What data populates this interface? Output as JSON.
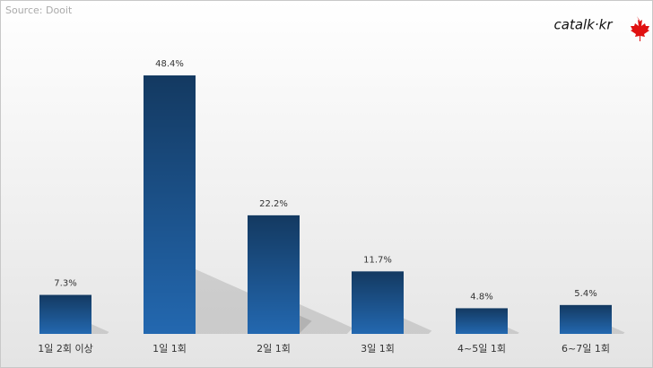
{
  "chart_data": {
    "type": "bar",
    "source": "Source: Dooit",
    "logo": "catalk·kr",
    "categories": [
      "1일 2회 이상",
      "1일 1회",
      "2일 1회",
      "3일 1회",
      "4~5일 1회",
      "6~7일 1회"
    ],
    "values": [
      7.3,
      48.4,
      22.2,
      11.7,
      4.8,
      5.4
    ],
    "value_labels": [
      "7.3%",
      "48.4%",
      "22.2%",
      "11.7%",
      "4.8%",
      "5.4%"
    ],
    "color": "#2368b0",
    "ylim": [
      0,
      60
    ]
  }
}
